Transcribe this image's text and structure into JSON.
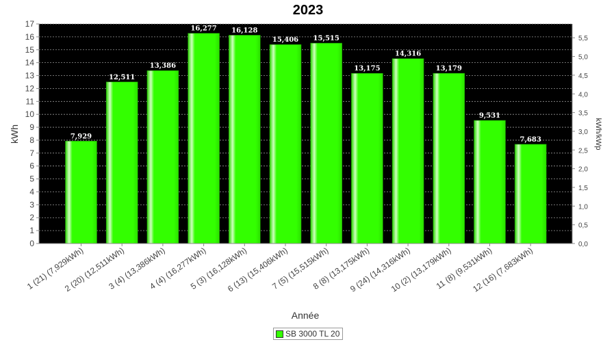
{
  "chart_data": {
    "type": "bar",
    "title": "2023",
    "xlabel": "Année",
    "ylabel": "kWh",
    "ylabel_right": "kWh/kWp",
    "ylim": [
      0,
      17
    ],
    "ylim_right": [
      0,
      5.87
    ],
    "yticks": [
      "0",
      "1",
      "2",
      "3",
      "4",
      "5",
      "6",
      "7",
      "8",
      "9",
      "10",
      "11",
      "12",
      "13",
      "14",
      "15",
      "16",
      "17"
    ],
    "yticks_right": [
      "0,0",
      "0,5",
      "1,0",
      "1,5",
      "2,0",
      "2,5",
      "3,0",
      "3,5",
      "4,0",
      "4,5",
      "5,0",
      "5,5"
    ],
    "categories": [
      "1 (21)  (7,929kWh)",
      "2 (20)  (12,511kWh)",
      "3 (4)  (13,386kWh)",
      "4 (4)  (16,277kWh)",
      "5 (3)  (16,128kWh)",
      "6 (13)  (15,406kWh)",
      "7 (5)  (15,515kWh)",
      "8 (8)  (13,175kWh)",
      "9 (24)  (14,316kWh)",
      "10 (2)  (13,179kWh)",
      "11 (8)  (9,531kWh)",
      "12 (16)  (7,683kWh)"
    ],
    "series": [
      {
        "name": "SB 3000 TL 20",
        "values": [
          7.929,
          12.511,
          13.386,
          16.277,
          16.128,
          15.406,
          15.515,
          13.175,
          14.316,
          13.179,
          9.531,
          7.683
        ],
        "labels": [
          "7,929",
          "12,511",
          "13,386",
          "16,277",
          "16,128",
          "15,406",
          "15,515",
          "13,175",
          "14,316",
          "13,179",
          "9,531",
          "7,683"
        ],
        "color": "#33ff00"
      }
    ],
    "grid": true,
    "plot_background": "#000000",
    "legend_position": "bottom-center"
  }
}
